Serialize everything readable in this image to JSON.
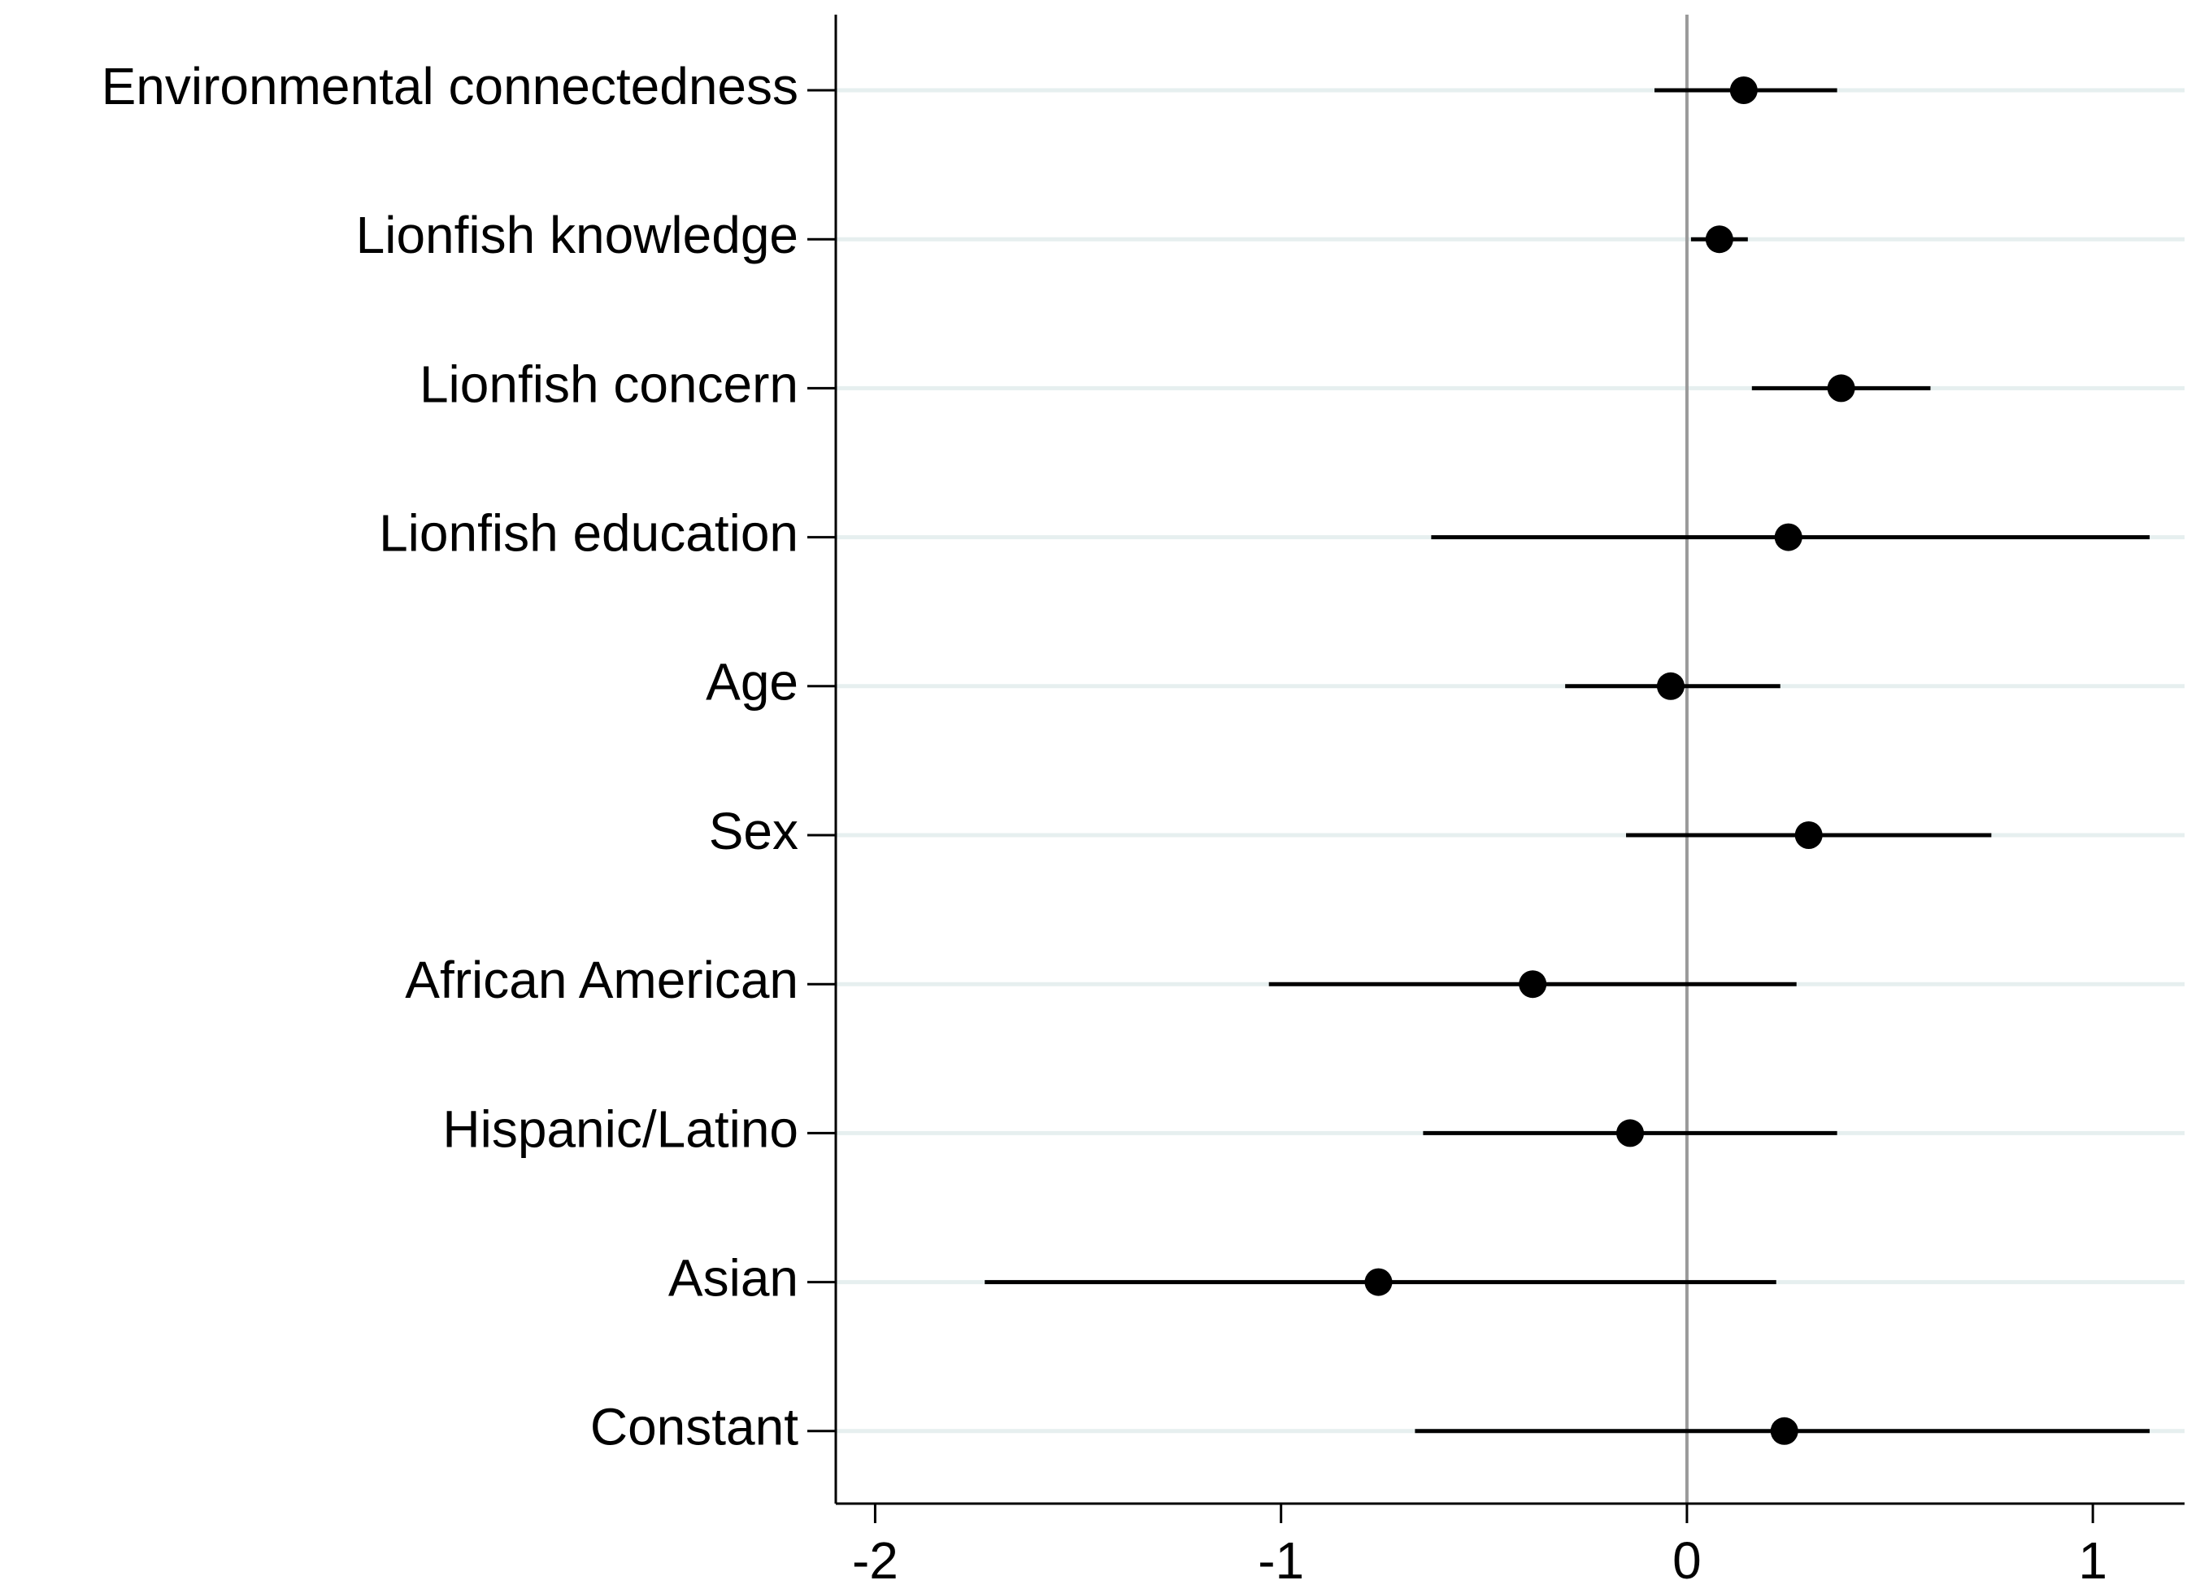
{
  "chart_data": {
    "type": "coefplot",
    "categories": [
      "Environmental connectedness",
      "Lionfish knowledge",
      "Lionfish concern",
      "Lionfish education",
      "Age",
      "Sex",
      "African American",
      "Hispanic/Latino",
      "Asian",
      "Constant"
    ],
    "values": [
      0.14,
      0.08,
      0.38,
      0.25,
      -0.04,
      0.3,
      -0.38,
      -0.14,
      -0.76,
      0.24
    ],
    "ci_lower": [
      -0.08,
      0.01,
      0.16,
      -0.63,
      -0.3,
      -0.15,
      -1.03,
      -0.65,
      -1.73,
      -0.67
    ],
    "ci_upper": [
      0.37,
      0.15,
      0.6,
      1.14,
      0.23,
      0.75,
      0.27,
      0.37,
      0.22,
      1.14
    ],
    "color": "#000000",
    "xlim": [
      -2.097,
      1.226
    ],
    "xticks": [
      -2,
      -1,
      0,
      1
    ],
    "reference_line": 0,
    "grid": true
  }
}
